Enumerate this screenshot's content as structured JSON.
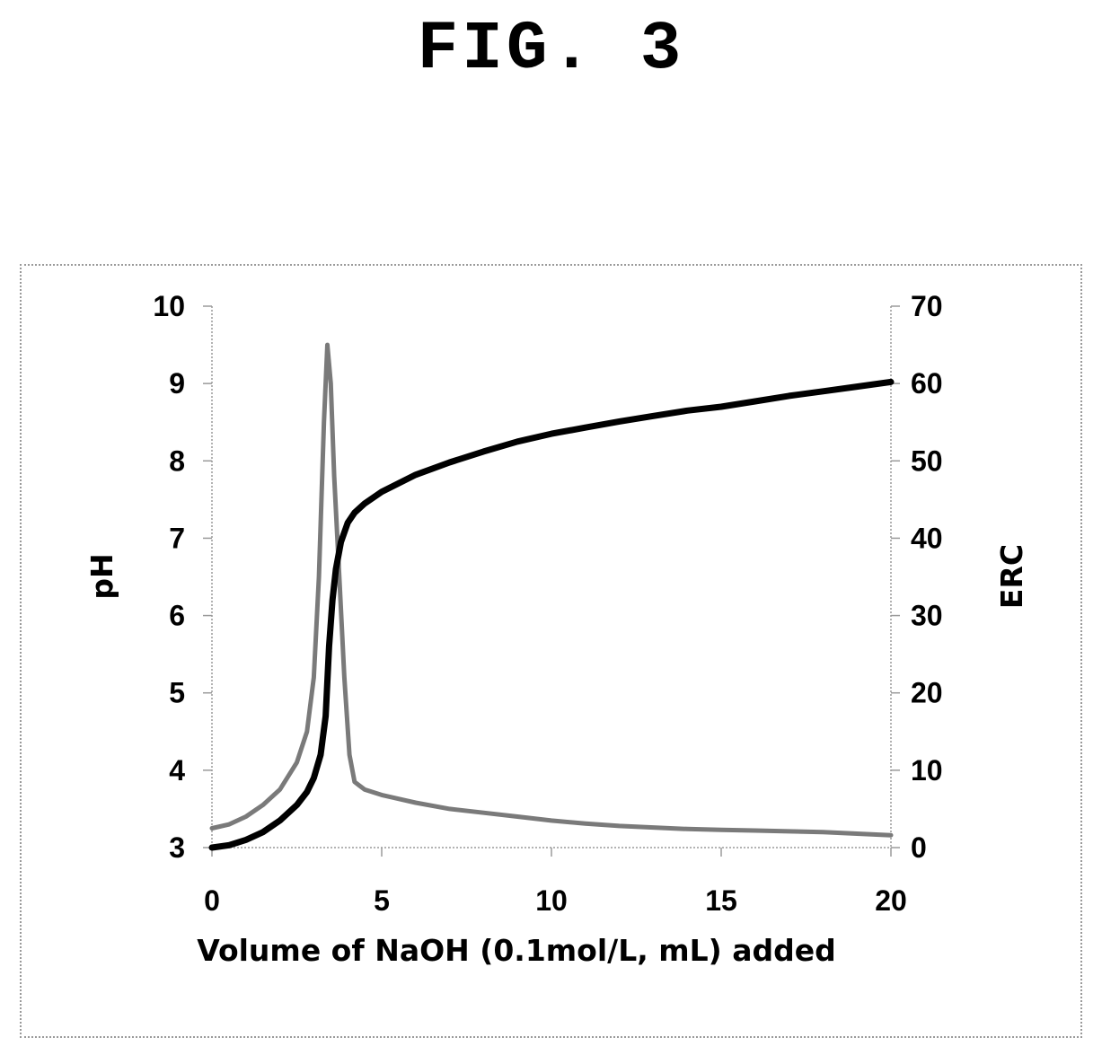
{
  "figure": {
    "title": "FIG. 3"
  },
  "chart_data": {
    "type": "line",
    "title": "",
    "xlabel": "Volume of NaOH (0.1mol/L, mL) added",
    "ylabel_left": "pH",
    "ylabel_right": "ERC",
    "xlim": [
      0,
      20
    ],
    "ylim_left": [
      3,
      10
    ],
    "ylim_right": [
      0,
      70
    ],
    "x_ticks": [
      0,
      5,
      10,
      15,
      20
    ],
    "y_ticks_left": [
      3,
      4,
      5,
      6,
      7,
      8,
      9,
      10
    ],
    "y_ticks_right": [
      0,
      10,
      20,
      30,
      40,
      50,
      60,
      70
    ],
    "grid": false,
    "legend": "none",
    "series": [
      {
        "axis": "left",
        "color": "#000000",
        "x": [
          0,
          0.5,
          1,
          1.5,
          2,
          2.5,
          2.8,
          3.0,
          3.2,
          3.35,
          3.45,
          3.55,
          3.65,
          3.8,
          4.0,
          4.2,
          4.5,
          5,
          6,
          7,
          8,
          9,
          10,
          11,
          12,
          13,
          14,
          15,
          16,
          17,
          18,
          19,
          20
        ],
        "values": [
          3.0,
          3.03,
          3.1,
          3.2,
          3.35,
          3.55,
          3.72,
          3.9,
          4.2,
          4.7,
          5.6,
          6.2,
          6.6,
          6.95,
          7.2,
          7.33,
          7.45,
          7.6,
          7.82,
          7.98,
          8.12,
          8.25,
          8.35,
          8.43,
          8.51,
          8.58,
          8.65,
          8.7,
          8.77,
          8.84,
          8.9,
          8.96,
          9.02
        ]
      },
      {
        "axis": "right",
        "color": "#7a7a7a",
        "x": [
          0,
          0.5,
          1,
          1.5,
          2,
          2.5,
          2.8,
          3.0,
          3.15,
          3.3,
          3.4,
          3.5,
          3.6,
          3.75,
          3.9,
          4.05,
          4.2,
          4.35,
          4.5,
          5,
          6,
          7,
          8,
          9,
          10,
          11,
          12,
          13,
          14,
          15,
          16,
          17,
          18,
          19,
          20
        ],
        "values": [
          2.5,
          3.0,
          4.0,
          5.5,
          7.5,
          11,
          15,
          22,
          35,
          55,
          65,
          60,
          48,
          35,
          22,
          12,
          8.5,
          8.0,
          7.5,
          6.8,
          5.8,
          5.0,
          4.5,
          4.0,
          3.5,
          3.1,
          2.8,
          2.6,
          2.4,
          2.3,
          2.2,
          2.1,
          2.0,
          1.8,
          1.6
        ]
      }
    ]
  }
}
